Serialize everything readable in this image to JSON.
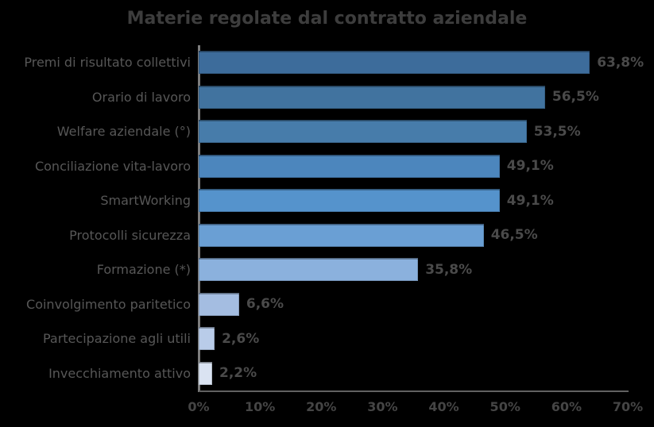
{
  "chart_data": {
    "type": "bar",
    "orientation": "horizontal",
    "title": "Materie regolate dal contratto aziendale",
    "categories": [
      "Premi di risultato collettivi",
      "Orario di lavoro",
      "Welfare aziendale (°)",
      "Conciliazione vita-lavoro",
      "SmartWorking",
      "Protocolli sicurezza",
      "Formazione (*)",
      "Coinvolgimento paritetico",
      "Partecipazione agli utili",
      "Invecchiamento attivo"
    ],
    "values": [
      63.8,
      56.5,
      53.5,
      49.1,
      49.1,
      46.5,
      35.8,
      6.6,
      2.6,
      2.2
    ],
    "value_labels": [
      "63,8%",
      "56,5%",
      "53,5%",
      "49,1%",
      "49,1%",
      "46,5%",
      "35,8%",
      "6,6%",
      "2,6%",
      "2,2%"
    ],
    "bar_colors": [
      "#3d6c9b",
      "#41739f",
      "#477caa",
      "#4c86bd",
      "#5593cc",
      "#6a9fd4",
      "#8bb1dd",
      "#a4bde1",
      "#b9cce9",
      "#dae3f2"
    ],
    "xlim": [
      0,
      70
    ],
    "x_ticks": [
      "0%",
      "10%",
      "20%",
      "30%",
      "40%",
      "50%",
      "60%",
      "70%"
    ],
    "legend": "none",
    "grid": "off",
    "colors": {
      "background": "#000000",
      "title_text": "#3d3d3d",
      "category_text": "#575757",
      "value_text": "#4a4a4a",
      "tick_text": "#454545",
      "axis_line": "#7d7d7d"
    }
  }
}
